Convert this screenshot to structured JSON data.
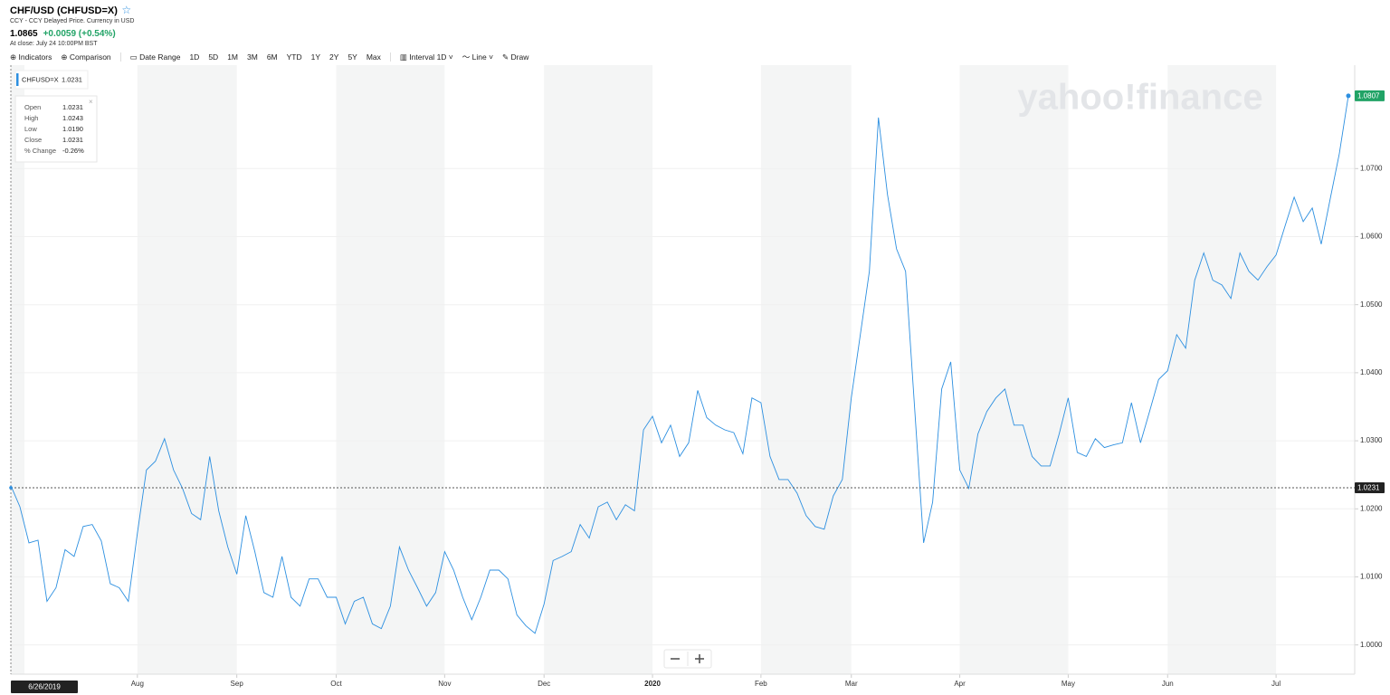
{
  "header": {
    "title": "CHF/USD (CHFUSD=X)",
    "subtitle": "CCY - CCY Delayed Price. Currency in USD",
    "price": "1.0865",
    "change": "+0.0059 (+0.54%)",
    "close_time": "At close: July 24 10:00PM BST"
  },
  "toolbar": [
    "Indicators",
    "Comparison",
    "Date Range",
    "1D",
    "5D",
    "1M",
    "3M",
    "6M",
    "YTD",
    "1Y",
    "2Y",
    "5Y",
    "Max",
    "Interval",
    "1D",
    "Line",
    "Draw"
  ],
  "tooltip": {
    "symbol": "CHFUSD=X",
    "symbol_value": "1.0231",
    "rows": [
      [
        "Open",
        "1.0231"
      ],
      [
        "High",
        "1.0243"
      ],
      [
        "Low",
        "1.0190"
      ],
      [
        "Close",
        "1.0231"
      ],
      [
        "% Change",
        "-0.26%"
      ]
    ]
  },
  "chart_data": {
    "type": "line",
    "watermark": "yahoo!finance",
    "categories": [
      null,
      null,
      null,
      null,
      null,
      null,
      null,
      null,
      null,
      null,
      null,
      null,
      null,
      null,
      "Aug",
      null,
      null,
      null,
      null,
      null,
      null,
      null,
      null,
      null,
      null,
      "Sep",
      null,
      null,
      null,
      null,
      null,
      null,
      null,
      null,
      null,
      null,
      "Oct",
      null,
      null,
      null,
      null,
      null,
      null,
      null,
      null,
      null,
      null,
      null,
      "Nov",
      null,
      null,
      null,
      null,
      null,
      null,
      null,
      null,
      null,
      null,
      "Dec",
      null,
      null,
      null,
      null,
      null,
      null,
      null,
      null,
      null,
      null,
      null,
      "2020",
      null,
      null,
      null,
      null,
      null,
      null,
      null,
      null,
      null,
      null,
      null,
      "Feb",
      null,
      null,
      null,
      null,
      null,
      null,
      null,
      null,
      null,
      "Mar",
      null,
      null,
      null,
      null,
      null,
      null,
      null,
      null,
      null,
      null,
      null,
      "Apr",
      null,
      null,
      null,
      null,
      null,
      null,
      null,
      null,
      null,
      null,
      null,
      "May",
      null,
      null,
      null,
      null,
      null,
      null,
      null,
      null,
      null,
      null,
      "Jun",
      null,
      null,
      null,
      null,
      null,
      null,
      null,
      null,
      null,
      null,
      null,
      "Jul",
      null,
      null,
      null,
      null,
      null,
      null,
      null,
      null
    ],
    "series": [
      {
        "name": "CHFUSD=X",
        "color": "#2c8fe0",
        "values": [
          1.0234,
          1.0203,
          1.015,
          1.0154,
          1.0064,
          1.0084,
          1.014,
          1.013,
          1.0174,
          1.0177,
          1.0153,
          1.009,
          1.0084,
          1.0064,
          1.0164,
          1.0257,
          1.027,
          1.0303,
          1.0257,
          1.023,
          1.0193,
          1.0184,
          1.0277,
          1.0197,
          1.0144,
          1.0104,
          1.019,
          1.0137,
          1.0077,
          1.007,
          1.013,
          1.007,
          1.0057,
          1.0097,
          1.0097,
          1.007,
          1.007,
          1.0031,
          1.0064,
          1.007,
          1.0031,
          1.0024,
          1.0057,
          1.0144,
          1.011,
          1.0084,
          1.0057,
          1.0077,
          1.0137,
          1.011,
          1.007,
          1.0037,
          1.007,
          1.011,
          1.011,
          1.0097,
          1.0044,
          1.0028,
          1.0017,
          1.006,
          1.0124,
          1.013,
          1.0137,
          1.0177,
          1.0157,
          1.0203,
          1.021,
          1.0184,
          1.0206,
          1.0197,
          1.0316,
          1.0336,
          1.0297,
          1.0323,
          1.0277,
          1.0297,
          1.0374,
          1.0334,
          1.0323,
          1.0316,
          1.0312,
          1.0281,
          1.0363,
          1.0356,
          1.0277,
          1.0243,
          1.0243,
          1.0223,
          1.019,
          1.0174,
          1.017,
          1.0219,
          1.0243,
          1.0363,
          1.0456,
          1.0549,
          1.0775,
          1.0662,
          1.0582,
          1.0549,
          1.035,
          1.015,
          1.021,
          1.0376,
          1.0416,
          1.0257,
          1.023,
          1.031,
          1.0343,
          1.0363,
          1.0376,
          1.0323,
          1.0323,
          1.0277,
          1.0263,
          1.0263,
          1.031,
          1.0363,
          1.0283,
          1.0277,
          1.0303,
          1.029,
          1.0294,
          1.0297,
          1.0356,
          1.0297,
          1.0343,
          1.039,
          1.0403,
          1.0456,
          1.0436,
          1.0536,
          1.0576,
          1.0536,
          1.0529,
          1.0509,
          1.0576,
          1.0549,
          1.0536,
          1.0556,
          1.0573,
          1.0616,
          1.0658,
          1.0622,
          1.0642,
          1.0589,
          1.0656,
          1.0722,
          1.0807
        ]
      }
    ],
    "cursor": {
      "date": "6/26/2019",
      "value": 1.0231
    },
    "ylim": [
      0.9957,
      1.0852
    ],
    "yticks": [
      {
        "value": 1.0,
        "label": "1.0000"
      },
      {
        "value": 1.01,
        "label": "1.0100"
      },
      {
        "value": 1.02,
        "label": "1.0200"
      },
      {
        "value": 1.03,
        "label": "1.0300"
      },
      {
        "value": 1.04,
        "label": "1.0400"
      },
      {
        "value": 1.05,
        "label": "1.0500"
      },
      {
        "value": 1.06,
        "label": "1.0600"
      },
      {
        "value": 1.07,
        "label": "1.0700"
      }
    ],
    "grid": true
  }
}
